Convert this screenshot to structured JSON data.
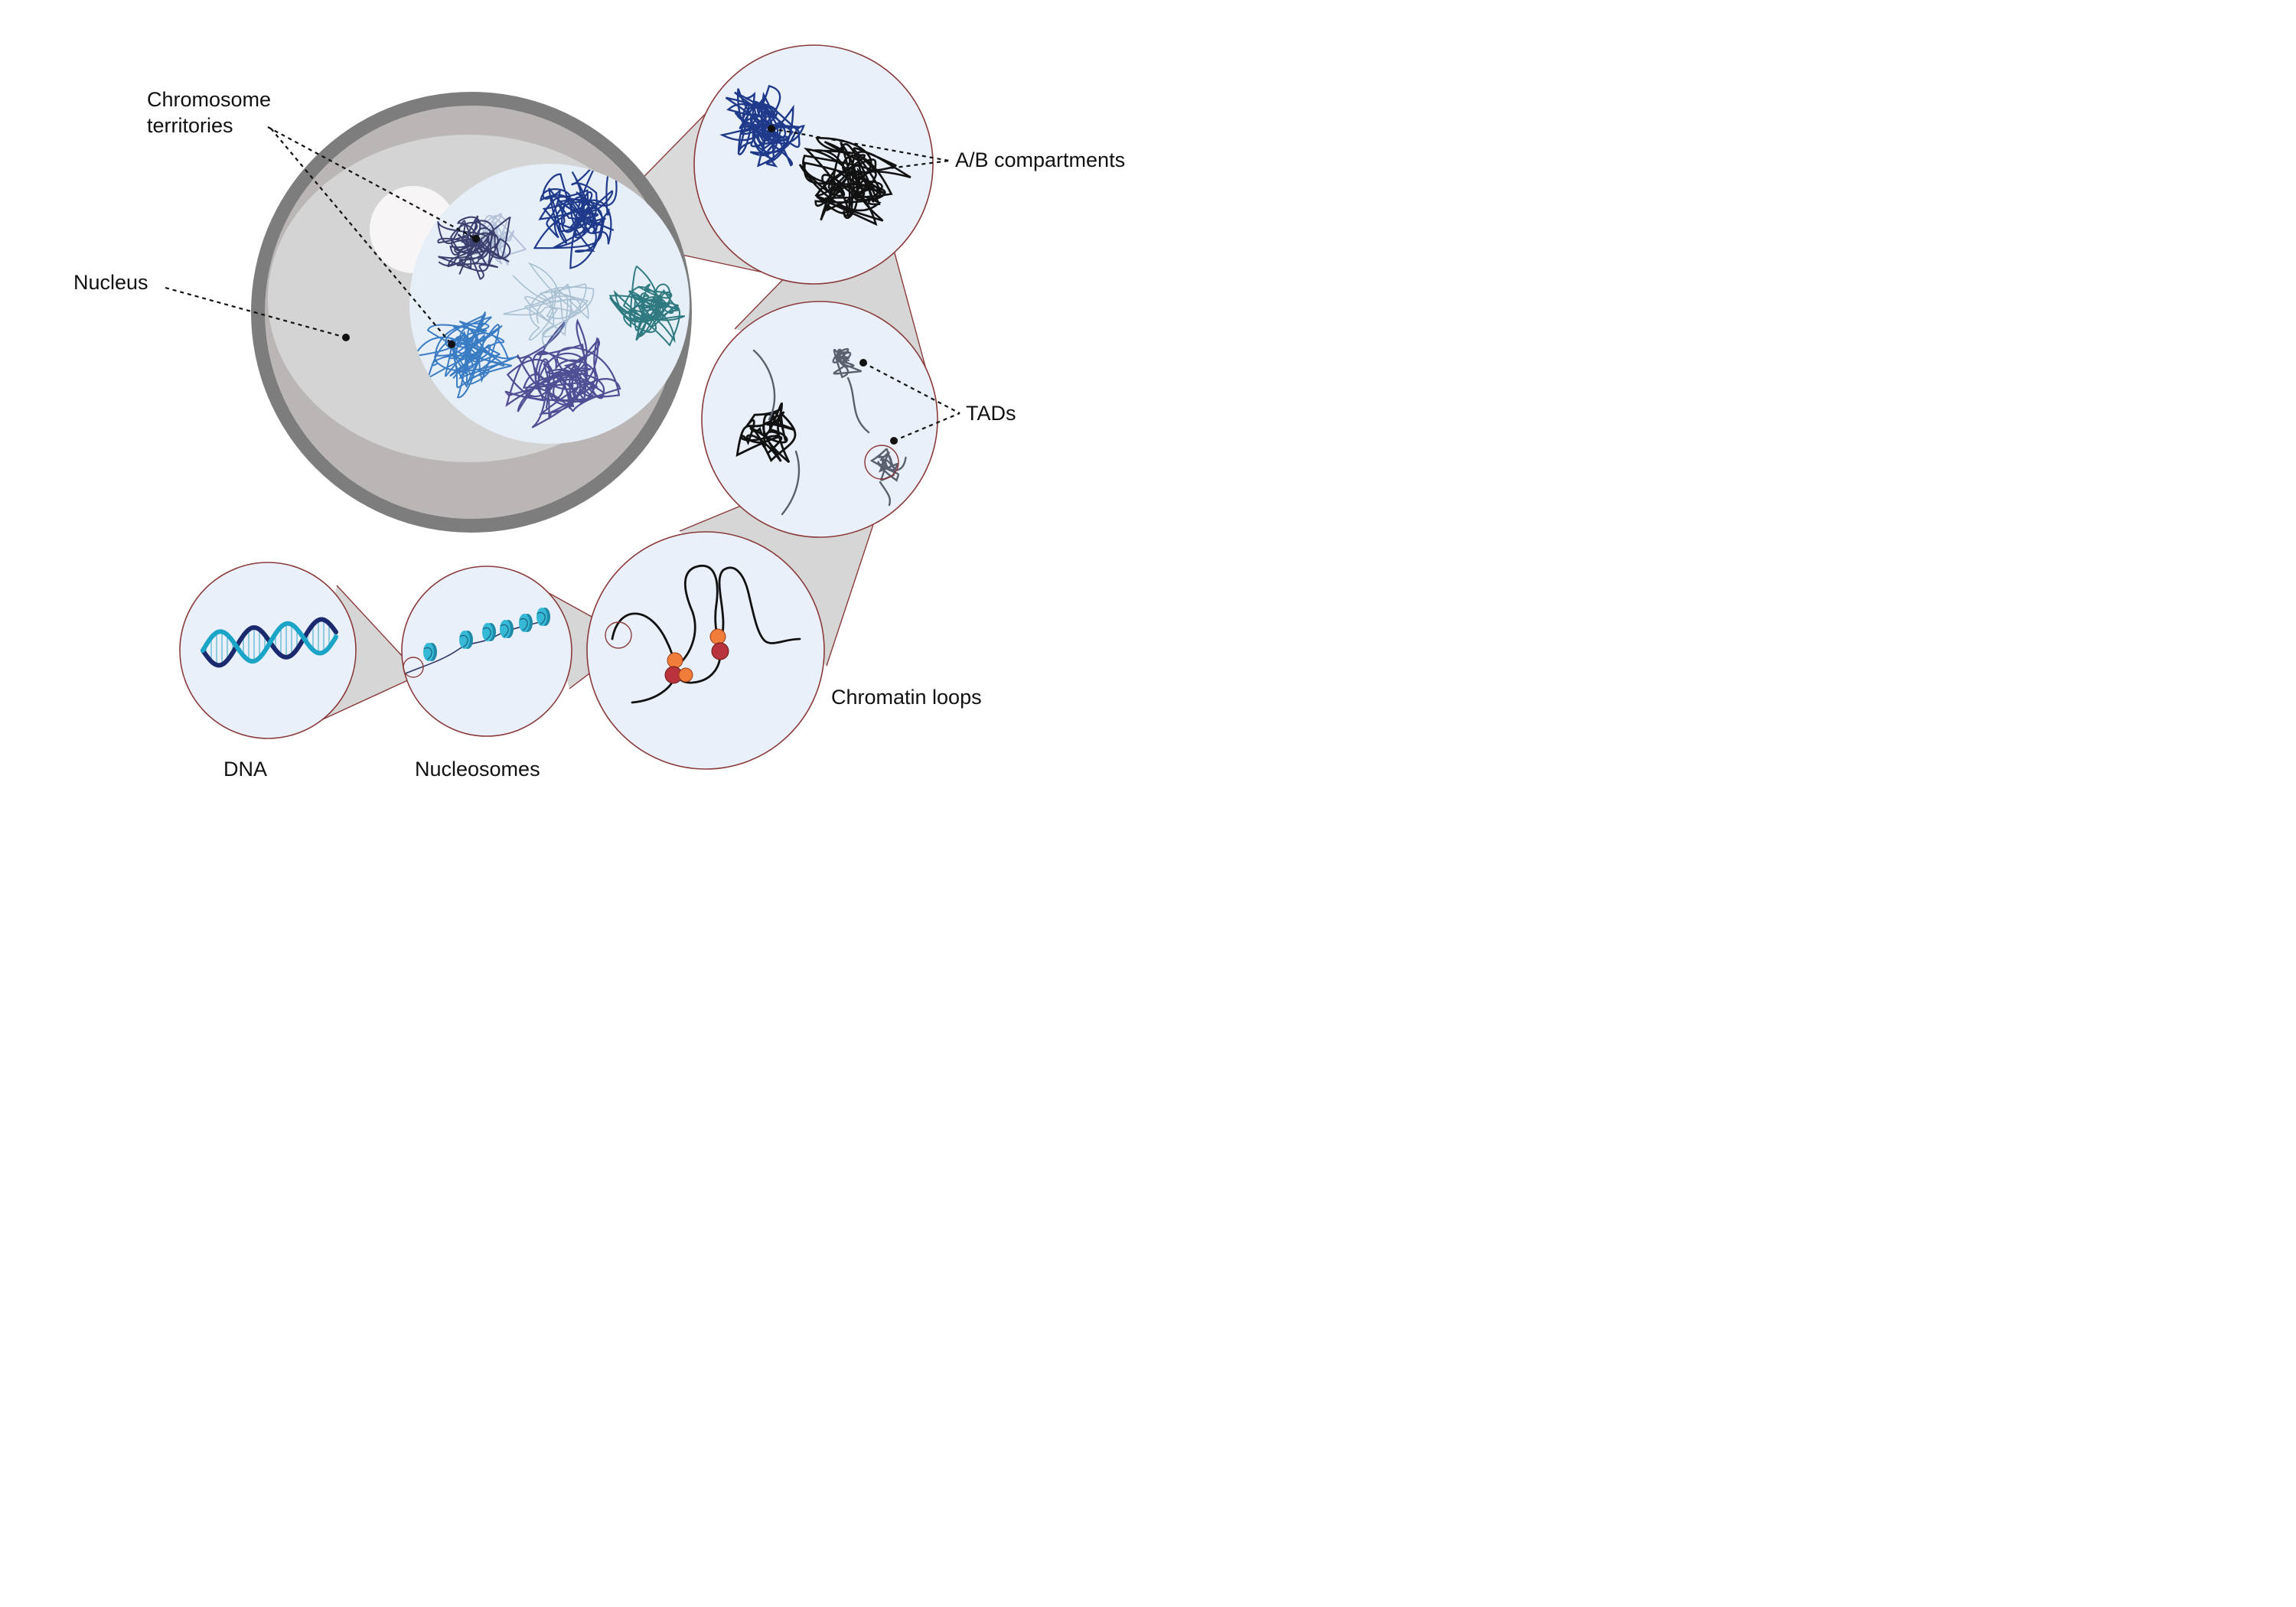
{
  "labels": {
    "chromosome_territories_line1": "Chromosome",
    "chromosome_territories_line2": "territories",
    "nucleus": "Nucleus",
    "ab_compartments": "A/B compartments",
    "tads": "TADs",
    "chromatin_loops": "Chromatin loops",
    "dna": "DNA",
    "nucleosomes": "Nucleosomes"
  },
  "colors": {
    "nuclear_envelope": "#7a7a7a",
    "nucleus_fill": "#d3d3d3",
    "nucleus_shadow": "#b9b6b6",
    "zoom_circle_fill": "#e9f0f9",
    "zoom_circle_stroke": "#8b3a3a",
    "cone_fill": "#d4d4d4",
    "territory_navy": "#1f3a8a",
    "territory_slate": "#3a3f6e",
    "territory_lightblue": "#3a7cc4",
    "territory_teal": "#2f7a80",
    "territory_purple": "#4e4f94",
    "chromatin_black": "#111111",
    "chromatin_gray": "#5b5f6e",
    "dna_navy": "#1b2a6e",
    "dna_teal": "#1aa5c8",
    "nucleosome_cyan": "#35b9d6",
    "cohesin_red": "#b8333b",
    "cohesin_orange": "#f07e3a"
  }
}
